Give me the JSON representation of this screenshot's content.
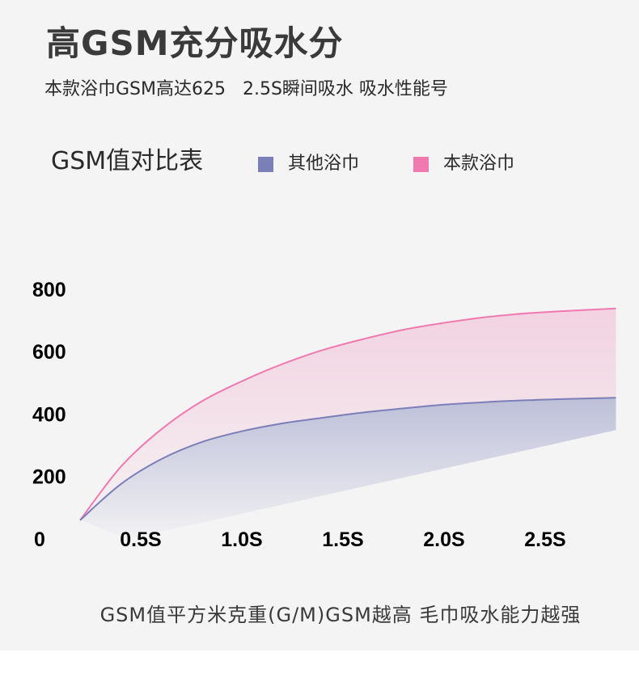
{
  "heading": "高GSM充分吸水分",
  "subheading": "本款浴巾GSM高达625   2.5S瞬间吸水 吸水性能号",
  "footer_note": "GSM值平方米克重(G/M)GSM越高 毛巾吸水能力越强",
  "chart_data": {
    "type": "area",
    "title": "GSM值对比表",
    "xlabel": "",
    "ylabel": "",
    "x_ticks": [
      "0.5S",
      "1.0S",
      "1.5S",
      "2.0S",
      "2.5S"
    ],
    "y_ticks": [
      "800",
      "600",
      "400",
      "200"
    ],
    "origin_label": "0",
    "xlim": [
      0,
      2.85
    ],
    "ylim": [
      0,
      800
    ],
    "x": [
      0.2,
      0.4,
      0.6,
      0.8,
      1.0,
      1.2,
      1.4,
      1.6,
      1.8,
      2.0,
      2.2,
      2.4,
      2.6,
      2.85
    ],
    "series": [
      {
        "name": "其他浴巾",
        "color": "#7b7fb8",
        "values": [
          60,
          175,
          255,
          310,
          345,
          370,
          388,
          405,
          418,
          430,
          438,
          444,
          448,
          452
        ]
      },
      {
        "name": "本款浴巾",
        "color": "#f07ab0",
        "values": [
          60,
          230,
          350,
          440,
          505,
          560,
          605,
          640,
          670,
          692,
          710,
          722,
          730,
          738
        ]
      }
    ],
    "legend_position": "top"
  }
}
